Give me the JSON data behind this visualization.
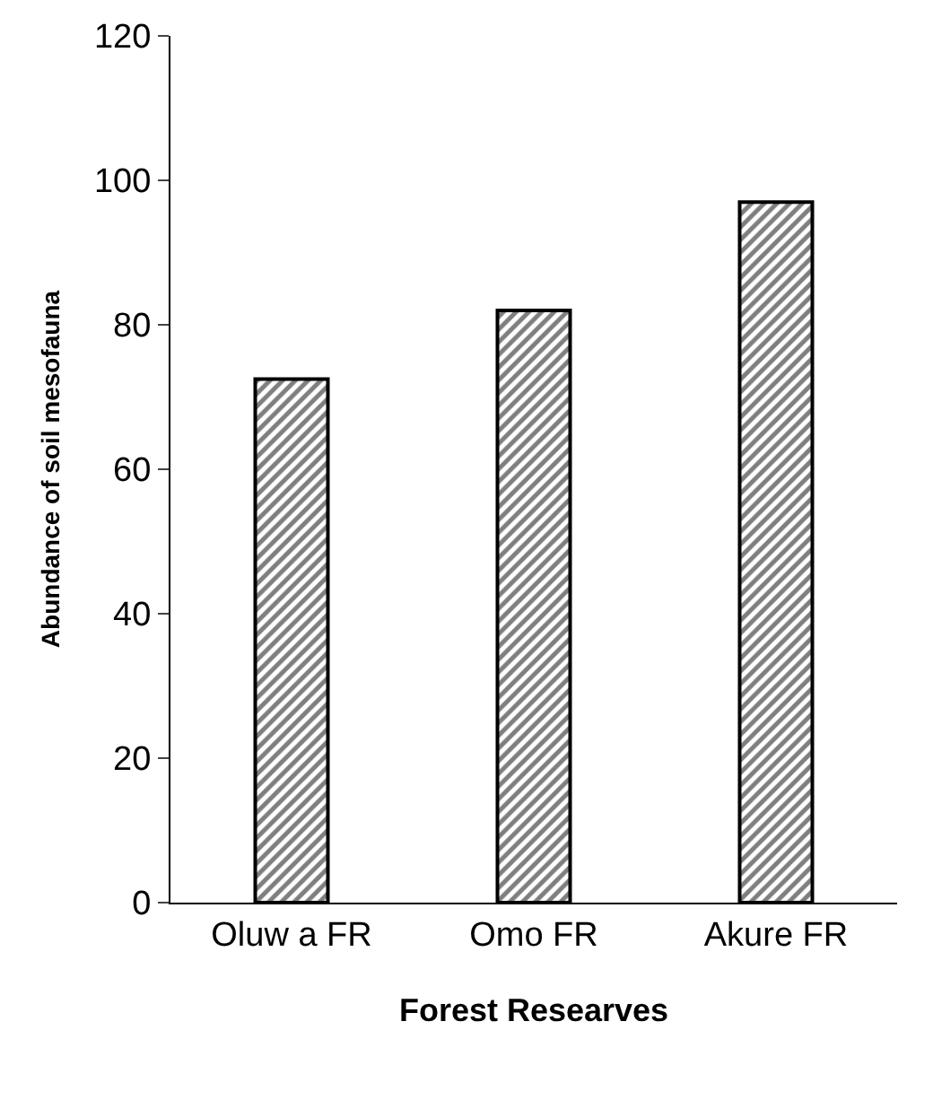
{
  "chart_data": {
    "type": "bar",
    "xlabel": "Forest Researves",
    "ylabel": "Abundance of soil mesofauna",
    "categories": [
      "Oluw a FR",
      "Omo FR",
      "Akure FR"
    ],
    "series": [
      {
        "color": "#000000",
        "values": [
          72.5,
          82,
          97
        ]
      }
    ],
    "ylim": [
      0,
      120
    ],
    "yticks": [
      0,
      20,
      40,
      60,
      80,
      100,
      120
    ],
    "legend": false
  }
}
